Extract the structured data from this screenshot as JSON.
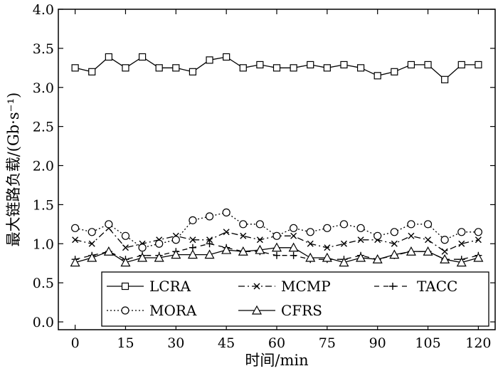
{
  "chart_data": {
    "type": "line",
    "xlabel": "时间/min",
    "ylabel": "最大链路负载/(Gb·s⁻¹)",
    "xlim": [
      -5,
      125
    ],
    "ylim": [
      -0.1,
      4.0
    ],
    "xticks": [
      0,
      15,
      30,
      45,
      60,
      75,
      90,
      105,
      120
    ],
    "xtick_labels": [
      "0",
      "15",
      "30",
      "45",
      "60",
      "75",
      "90",
      "105",
      "120"
    ],
    "yticks": [
      0.0,
      0.5,
      1.0,
      1.5,
      2.0,
      2.5,
      3.0,
      3.5,
      4.0
    ],
    "ytick_labels": [
      "0.0",
      "0.5",
      "1.0",
      "1.5",
      "2.0",
      "2.5",
      "3.0",
      "3.5",
      "4.0"
    ],
    "x": [
      0,
      5,
      10,
      15,
      20,
      25,
      30,
      35,
      40,
      45,
      50,
      55,
      60,
      65,
      70,
      75,
      80,
      85,
      90,
      95,
      100,
      105,
      110,
      115,
      120
    ],
    "series": [
      {
        "name": "LCRA",
        "values": [
          3.25,
          3.2,
          3.39,
          3.25,
          3.39,
          3.25,
          3.25,
          3.2,
          3.35,
          3.39,
          3.25,
          3.29,
          3.25,
          3.25,
          3.29,
          3.25,
          3.29,
          3.25,
          3.15,
          3.2,
          3.29,
          3.29,
          3.1,
          3.29,
          3.29
        ]
      },
      {
        "name": "MCMP",
        "values": [
          1.05,
          1.0,
          1.2,
          0.95,
          1.0,
          1.05,
          1.1,
          1.05,
          1.05,
          1.15,
          1.1,
          1.05,
          1.1,
          1.1,
          1.0,
          0.95,
          1.0,
          1.05,
          1.05,
          1.0,
          1.1,
          1.05,
          0.9,
          1.0,
          1.05
        ]
      },
      {
        "name": "TACC",
        "values": [
          0.8,
          0.85,
          0.9,
          0.8,
          0.85,
          0.85,
          0.9,
          0.95,
          1.0,
          0.95,
          0.9,
          0.9,
          0.85,
          0.85,
          0.8,
          0.8,
          0.8,
          0.85,
          0.8,
          0.85,
          0.9,
          0.9,
          0.8,
          0.8,
          0.85
        ]
      },
      {
        "name": "MORA",
        "values": [
          1.2,
          1.15,
          1.25,
          1.1,
          0.95,
          1.0,
          1.05,
          1.3,
          1.35,
          1.4,
          1.25,
          1.25,
          1.1,
          1.2,
          1.15,
          1.2,
          1.25,
          1.2,
          1.1,
          1.15,
          1.25,
          1.25,
          1.05,
          1.15,
          1.15
        ]
      },
      {
        "name": "CFRS",
        "values": [
          0.76,
          0.82,
          0.9,
          0.76,
          0.82,
          0.82,
          0.86,
          0.86,
          0.86,
          0.92,
          0.9,
          0.92,
          0.95,
          0.95,
          0.82,
          0.82,
          0.76,
          0.82,
          0.8,
          0.86,
          0.9,
          0.9,
          0.8,
          0.76,
          0.82
        ]
      }
    ],
    "legend": {
      "placement": "bottom",
      "entries": [
        "LCRA",
        "MCMP",
        "TACC",
        "MORA",
        "CFRS"
      ]
    }
  }
}
